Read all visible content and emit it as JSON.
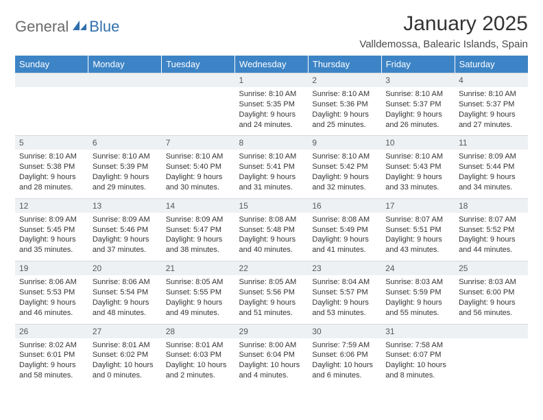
{
  "logo": {
    "text_general": "General",
    "text_blue": "Blue"
  },
  "title": "January 2025",
  "location": "Valldemossa, Balearic Islands, Spain",
  "colors": {
    "header_bg": "#3d84c6",
    "header_text": "#ffffff",
    "daynum_bg": "#eef1f4",
    "daynum_border": "#d4d7db",
    "body_text": "#333333",
    "logo_gray": "#6a6a6a",
    "logo_blue": "#2f6fad"
  },
  "day_headers": [
    "Sunday",
    "Monday",
    "Tuesday",
    "Wednesday",
    "Thursday",
    "Friday",
    "Saturday"
  ],
  "weeks": [
    [
      null,
      null,
      null,
      {
        "n": "1",
        "sr": "Sunrise: 8:10 AM",
        "ss": "Sunset: 5:35 PM",
        "dl1": "Daylight: 9 hours",
        "dl2": "and 24 minutes."
      },
      {
        "n": "2",
        "sr": "Sunrise: 8:10 AM",
        "ss": "Sunset: 5:36 PM",
        "dl1": "Daylight: 9 hours",
        "dl2": "and 25 minutes."
      },
      {
        "n": "3",
        "sr": "Sunrise: 8:10 AM",
        "ss": "Sunset: 5:37 PM",
        "dl1": "Daylight: 9 hours",
        "dl2": "and 26 minutes."
      },
      {
        "n": "4",
        "sr": "Sunrise: 8:10 AM",
        "ss": "Sunset: 5:37 PM",
        "dl1": "Daylight: 9 hours",
        "dl2": "and 27 minutes."
      }
    ],
    [
      {
        "n": "5",
        "sr": "Sunrise: 8:10 AM",
        "ss": "Sunset: 5:38 PM",
        "dl1": "Daylight: 9 hours",
        "dl2": "and 28 minutes."
      },
      {
        "n": "6",
        "sr": "Sunrise: 8:10 AM",
        "ss": "Sunset: 5:39 PM",
        "dl1": "Daylight: 9 hours",
        "dl2": "and 29 minutes."
      },
      {
        "n": "7",
        "sr": "Sunrise: 8:10 AM",
        "ss": "Sunset: 5:40 PM",
        "dl1": "Daylight: 9 hours",
        "dl2": "and 30 minutes."
      },
      {
        "n": "8",
        "sr": "Sunrise: 8:10 AM",
        "ss": "Sunset: 5:41 PM",
        "dl1": "Daylight: 9 hours",
        "dl2": "and 31 minutes."
      },
      {
        "n": "9",
        "sr": "Sunrise: 8:10 AM",
        "ss": "Sunset: 5:42 PM",
        "dl1": "Daylight: 9 hours",
        "dl2": "and 32 minutes."
      },
      {
        "n": "10",
        "sr": "Sunrise: 8:10 AM",
        "ss": "Sunset: 5:43 PM",
        "dl1": "Daylight: 9 hours",
        "dl2": "and 33 minutes."
      },
      {
        "n": "11",
        "sr": "Sunrise: 8:09 AM",
        "ss": "Sunset: 5:44 PM",
        "dl1": "Daylight: 9 hours",
        "dl2": "and 34 minutes."
      }
    ],
    [
      {
        "n": "12",
        "sr": "Sunrise: 8:09 AM",
        "ss": "Sunset: 5:45 PM",
        "dl1": "Daylight: 9 hours",
        "dl2": "and 35 minutes."
      },
      {
        "n": "13",
        "sr": "Sunrise: 8:09 AM",
        "ss": "Sunset: 5:46 PM",
        "dl1": "Daylight: 9 hours",
        "dl2": "and 37 minutes."
      },
      {
        "n": "14",
        "sr": "Sunrise: 8:09 AM",
        "ss": "Sunset: 5:47 PM",
        "dl1": "Daylight: 9 hours",
        "dl2": "and 38 minutes."
      },
      {
        "n": "15",
        "sr": "Sunrise: 8:08 AM",
        "ss": "Sunset: 5:48 PM",
        "dl1": "Daylight: 9 hours",
        "dl2": "and 40 minutes."
      },
      {
        "n": "16",
        "sr": "Sunrise: 8:08 AM",
        "ss": "Sunset: 5:49 PM",
        "dl1": "Daylight: 9 hours",
        "dl2": "and 41 minutes."
      },
      {
        "n": "17",
        "sr": "Sunrise: 8:07 AM",
        "ss": "Sunset: 5:51 PM",
        "dl1": "Daylight: 9 hours",
        "dl2": "and 43 minutes."
      },
      {
        "n": "18",
        "sr": "Sunrise: 8:07 AM",
        "ss": "Sunset: 5:52 PM",
        "dl1": "Daylight: 9 hours",
        "dl2": "and 44 minutes."
      }
    ],
    [
      {
        "n": "19",
        "sr": "Sunrise: 8:06 AM",
        "ss": "Sunset: 5:53 PM",
        "dl1": "Daylight: 9 hours",
        "dl2": "and 46 minutes."
      },
      {
        "n": "20",
        "sr": "Sunrise: 8:06 AM",
        "ss": "Sunset: 5:54 PM",
        "dl1": "Daylight: 9 hours",
        "dl2": "and 48 minutes."
      },
      {
        "n": "21",
        "sr": "Sunrise: 8:05 AM",
        "ss": "Sunset: 5:55 PM",
        "dl1": "Daylight: 9 hours",
        "dl2": "and 49 minutes."
      },
      {
        "n": "22",
        "sr": "Sunrise: 8:05 AM",
        "ss": "Sunset: 5:56 PM",
        "dl1": "Daylight: 9 hours",
        "dl2": "and 51 minutes."
      },
      {
        "n": "23",
        "sr": "Sunrise: 8:04 AM",
        "ss": "Sunset: 5:57 PM",
        "dl1": "Daylight: 9 hours",
        "dl2": "and 53 minutes."
      },
      {
        "n": "24",
        "sr": "Sunrise: 8:03 AM",
        "ss": "Sunset: 5:59 PM",
        "dl1": "Daylight: 9 hours",
        "dl2": "and 55 minutes."
      },
      {
        "n": "25",
        "sr": "Sunrise: 8:03 AM",
        "ss": "Sunset: 6:00 PM",
        "dl1": "Daylight: 9 hours",
        "dl2": "and 56 minutes."
      }
    ],
    [
      {
        "n": "26",
        "sr": "Sunrise: 8:02 AM",
        "ss": "Sunset: 6:01 PM",
        "dl1": "Daylight: 9 hours",
        "dl2": "and 58 minutes."
      },
      {
        "n": "27",
        "sr": "Sunrise: 8:01 AM",
        "ss": "Sunset: 6:02 PM",
        "dl1": "Daylight: 10 hours",
        "dl2": "and 0 minutes."
      },
      {
        "n": "28",
        "sr": "Sunrise: 8:01 AM",
        "ss": "Sunset: 6:03 PM",
        "dl1": "Daylight: 10 hours",
        "dl2": "and 2 minutes."
      },
      {
        "n": "29",
        "sr": "Sunrise: 8:00 AM",
        "ss": "Sunset: 6:04 PM",
        "dl1": "Daylight: 10 hours",
        "dl2": "and 4 minutes."
      },
      {
        "n": "30",
        "sr": "Sunrise: 7:59 AM",
        "ss": "Sunset: 6:06 PM",
        "dl1": "Daylight: 10 hours",
        "dl2": "and 6 minutes."
      },
      {
        "n": "31",
        "sr": "Sunrise: 7:58 AM",
        "ss": "Sunset: 6:07 PM",
        "dl1": "Daylight: 10 hours",
        "dl2": "and 8 minutes."
      },
      null
    ]
  ]
}
